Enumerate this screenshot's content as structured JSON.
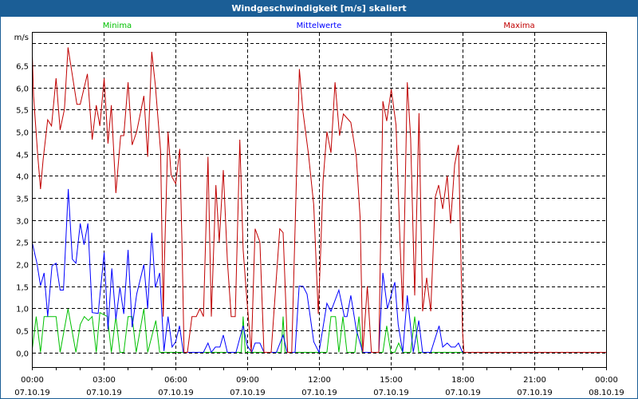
{
  "window": {
    "title": "Windgeschwindigkeit [m/s] skaliert"
  },
  "chart_data": {
    "type": "line",
    "title": "Windgeschwindigkeit [m/s] skaliert",
    "ylabel": "m/s",
    "xlabel": "",
    "ylim": [
      -0.33,
      7.26
    ],
    "xlim_hours": [
      0,
      24
    ],
    "yticks": [
      0,
      0.5,
      1,
      1.5,
      2,
      2.5,
      3,
      3.5,
      4,
      4.5,
      5,
      5.5,
      6,
      6.5,
      7
    ],
    "ytick_labels": [
      "0,0",
      "0,5",
      "1,0",
      "1,5",
      "2,0",
      "2,5",
      "3,0",
      "3,5",
      "4,0",
      "4,5",
      "5,0",
      "5,5",
      "6,0",
      "6,5",
      ""
    ],
    "xticks": [
      {
        "hour": 0,
        "time": "00:00",
        "date": "07.10.19"
      },
      {
        "hour": 3,
        "time": "03:00",
        "date": "07.10.19"
      },
      {
        "hour": 6,
        "time": "06:00",
        "date": "07.10.19"
      },
      {
        "hour": 9,
        "time": "09:00",
        "date": "07.10.19"
      },
      {
        "hour": 12,
        "time": "12:00",
        "date": "07.10.19"
      },
      {
        "hour": 15,
        "time": "15:00",
        "date": "07.10.19"
      },
      {
        "hour": 18,
        "time": "18:00",
        "date": "07.10.19"
      },
      {
        "hour": 21,
        "time": "21:00",
        "date": "07.10.19"
      },
      {
        "hour": 24,
        "time": "00:00",
        "date": "08.10.19"
      }
    ],
    "grid": true,
    "legend_placement": "top",
    "series": [
      {
        "name": "Minima",
        "color": "#00c000",
        "points": [
          [
            0.02,
            0.09
          ],
          [
            0.18,
            0.81
          ],
          [
            0.36,
            0
          ],
          [
            0.51,
            0.81
          ],
          [
            1.01,
            0.81
          ],
          [
            1.18,
            0
          ],
          [
            1.51,
            0.99
          ],
          [
            1.84,
            0
          ],
          [
            2.02,
            0.63
          ],
          [
            2.19,
            0.81
          ],
          [
            2.36,
            0.72
          ],
          [
            2.52,
            0.81
          ],
          [
            2.69,
            0
          ],
          [
            2.84,
            0.9
          ],
          [
            3.16,
            0.81
          ],
          [
            3.32,
            0
          ],
          [
            3.51,
            0.81
          ],
          [
            3.68,
            0
          ],
          [
            3.84,
            0
          ],
          [
            4.02,
            0.81
          ],
          [
            4.19,
            0.81
          ],
          [
            4.36,
            0
          ],
          [
            4.68,
            0.99
          ],
          [
            4.84,
            0
          ],
          [
            5.18,
            0.72
          ],
          [
            5.34,
            0
          ],
          [
            8.75,
            0
          ],
          [
            8.83,
            0.81
          ],
          [
            8.92,
            0
          ],
          [
            10.42,
            0
          ],
          [
            10.5,
            0.81
          ],
          [
            10.58,
            0
          ],
          [
            12.33,
            0
          ],
          [
            12.5,
            0.81
          ],
          [
            12.69,
            0.81
          ],
          [
            12.83,
            0
          ],
          [
            13.0,
            0.81
          ],
          [
            13.17,
            0
          ],
          [
            13.5,
            0
          ],
          [
            13.67,
            0.81
          ],
          [
            13.8,
            0
          ],
          [
            14.67,
            0
          ],
          [
            14.83,
            0.6
          ],
          [
            15.0,
            0
          ],
          [
            15.17,
            0
          ],
          [
            15.33,
            0.21
          ],
          [
            15.5,
            0
          ],
          [
            15.83,
            0
          ],
          [
            16.0,
            0.81
          ],
          [
            16.17,
            0
          ],
          [
            18,
            0
          ]
        ]
      },
      {
        "name": "Mittelwerte",
        "color": "#0000ff",
        "points": [
          [
            0.02,
            2.47
          ],
          [
            0.21,
            2.02
          ],
          [
            0.36,
            1.51
          ],
          [
            0.51,
            1.8
          ],
          [
            0.66,
            0.81
          ],
          [
            0.84,
            1.96
          ],
          [
            1.01,
            2.02
          ],
          [
            1.18,
            1.41
          ],
          [
            1.32,
            1.41
          ],
          [
            1.52,
            3.7
          ],
          [
            1.69,
            2.11
          ],
          [
            1.84,
            2.02
          ],
          [
            2.02,
            2.92
          ],
          [
            2.18,
            2.44
          ],
          [
            2.34,
            2.92
          ],
          [
            2.52,
            0.9
          ],
          [
            2.77,
            0.88
          ],
          [
            3.02,
            2.26
          ],
          [
            3.18,
            0.51
          ],
          [
            3.34,
            1.9
          ],
          [
            3.51,
            0.75
          ],
          [
            3.68,
            1.47
          ],
          [
            3.84,
            0.87
          ],
          [
            4.02,
            2.32
          ],
          [
            4.19,
            0.57
          ],
          [
            4.38,
            1.32
          ],
          [
            4.68,
            1.99
          ],
          [
            4.84,
            0.99
          ],
          [
            5.01,
            2.71
          ],
          [
            5.16,
            1.47
          ],
          [
            5.34,
            1.8
          ],
          [
            5.52,
            0.03
          ],
          [
            5.69,
            0.81
          ],
          [
            5.86,
            0.12
          ],
          [
            6.01,
            0.24
          ],
          [
            6.17,
            0.6
          ],
          [
            6.33,
            0
          ],
          [
            7.17,
            0
          ],
          [
            7.36,
            0.21
          ],
          [
            7.5,
            0
          ],
          [
            7.67,
            0.12
          ],
          [
            7.86,
            0.12
          ],
          [
            8.0,
            0.39
          ],
          [
            8.17,
            0
          ],
          [
            8.53,
            0
          ],
          [
            8.83,
            0.6
          ],
          [
            9.0,
            0.15
          ],
          [
            9.19,
            0
          ],
          [
            9.33,
            0.21
          ],
          [
            9.53,
            0.21
          ],
          [
            9.7,
            0
          ],
          [
            10.22,
            0
          ],
          [
            10.5,
            0.39
          ],
          [
            10.67,
            0
          ],
          [
            11.0,
            0
          ],
          [
            11.17,
            1.5
          ],
          [
            11.33,
            1.5
          ],
          [
            11.5,
            1.32
          ],
          [
            11.78,
            0.24
          ],
          [
            12.0,
            0
          ],
          [
            12.33,
            1.11
          ],
          [
            12.5,
            0.93
          ],
          [
            12.83,
            1.41
          ],
          [
            13.06,
            0.81
          ],
          [
            13.17,
            0.81
          ],
          [
            13.33,
            1.29
          ],
          [
            13.56,
            0.51
          ],
          [
            13.83,
            0
          ],
          [
            14.5,
            0
          ],
          [
            14.67,
            1.8
          ],
          [
            14.86,
            0.99
          ],
          [
            15.17,
            1.59
          ],
          [
            15.31,
            0.63
          ],
          [
            15.5,
            0
          ],
          [
            15.69,
            1.29
          ],
          [
            15.94,
            0
          ],
          [
            16.17,
            0.72
          ],
          [
            16.33,
            0
          ],
          [
            16.67,
            0
          ],
          [
            17.02,
            0.6
          ],
          [
            17.17,
            0.12
          ],
          [
            17.36,
            0.21
          ],
          [
            17.52,
            0.12
          ],
          [
            17.69,
            0.12
          ],
          [
            17.83,
            0.21
          ],
          [
            18,
            0
          ]
        ]
      },
      {
        "name": "Maxima",
        "color": "#c00000",
        "points": [
          [
            0.02,
            6.69
          ],
          [
            0.07,
            5.81
          ],
          [
            0.24,
            4.49
          ],
          [
            0.36,
            3.7
          ],
          [
            0.47,
            4.37
          ],
          [
            0.66,
            5.27
          ],
          [
            0.82,
            5.13
          ],
          [
            1.01,
            6.21
          ],
          [
            1.18,
            5.04
          ],
          [
            1.36,
            5.51
          ],
          [
            1.51,
            6.91
          ],
          [
            1.88,
            5.62
          ],
          [
            2.02,
            5.62
          ],
          [
            2.32,
            6.31
          ],
          [
            2.52,
            4.82
          ],
          [
            2.69,
            5.6
          ],
          [
            2.84,
            5.13
          ],
          [
            3.02,
            6.21
          ],
          [
            3.18,
            4.73
          ],
          [
            3.32,
            5.6
          ],
          [
            3.51,
            3.61
          ],
          [
            3.71,
            4.91
          ],
          [
            3.84,
            4.91
          ],
          [
            4.02,
            6.12
          ],
          [
            4.19,
            4.7
          ],
          [
            4.38,
            5.0
          ],
          [
            4.68,
            5.81
          ],
          [
            4.84,
            4.43
          ],
          [
            5.01,
            6.81
          ],
          [
            5.16,
            6.05
          ],
          [
            5.38,
            4.55
          ],
          [
            5.49,
            0.81
          ],
          [
            5.54,
            2.08
          ],
          [
            5.69,
            5.0
          ],
          [
            5.82,
            4.01
          ],
          [
            6.01,
            3.82
          ],
          [
            6.18,
            4.61
          ],
          [
            6.28,
            2.32
          ],
          [
            6.36,
            0
          ],
          [
            6.5,
            0
          ],
          [
            6.69,
            0.81
          ],
          [
            6.87,
            0.81
          ],
          [
            7.02,
            0.99
          ],
          [
            7.17,
            0.81
          ],
          [
            7.36,
            4.43
          ],
          [
            7.5,
            0.81
          ],
          [
            7.69,
            3.79
          ],
          [
            7.83,
            2.5
          ],
          [
            8.0,
            4.13
          ],
          [
            8.17,
            2.08
          ],
          [
            8.33,
            0.81
          ],
          [
            8.5,
            0.81
          ],
          [
            8.69,
            4.82
          ],
          [
            8.83,
            2.32
          ],
          [
            8.98,
            1.23
          ],
          [
            9.17,
            0
          ],
          [
            9.33,
            2.8
          ],
          [
            9.53,
            2.5
          ],
          [
            9.7,
            0
          ],
          [
            10.0,
            0
          ],
          [
            10.36,
            2.8
          ],
          [
            10.5,
            2.71
          ],
          [
            10.69,
            0
          ],
          [
            10.86,
            0
          ],
          [
            11.18,
            6.42
          ],
          [
            11.33,
            5.45
          ],
          [
            11.56,
            4.49
          ],
          [
            11.78,
            3.34
          ],
          [
            11.97,
            0.87
          ],
          [
            12.07,
            2.3
          ],
          [
            12.17,
            3.88
          ],
          [
            12.33,
            5.0
          ],
          [
            12.5,
            4.52
          ],
          [
            12.67,
            6.12
          ],
          [
            12.86,
            4.91
          ],
          [
            13.02,
            5.4
          ],
          [
            13.33,
            5.21
          ],
          [
            13.56,
            4.43
          ],
          [
            13.72,
            3.04
          ],
          [
            13.83,
            0
          ],
          [
            14.02,
            1.5
          ],
          [
            14.19,
            0
          ],
          [
            14.5,
            0
          ],
          [
            14.67,
            5.69
          ],
          [
            14.83,
            5.24
          ],
          [
            15.02,
            5.96
          ],
          [
            15.22,
            5.15
          ],
          [
            15.39,
            2.44
          ],
          [
            15.5,
            0.93
          ],
          [
            15.69,
            6.12
          ],
          [
            15.83,
            4.85
          ],
          [
            16.0,
            1.29
          ],
          [
            16.18,
            5.42
          ],
          [
            16.33,
            0.93
          ],
          [
            16.5,
            1.69
          ],
          [
            16.67,
            0.93
          ],
          [
            16.86,
            3.52
          ],
          [
            17.0,
            3.79
          ],
          [
            17.17,
            3.25
          ],
          [
            17.36,
            4.0
          ],
          [
            17.5,
            2.92
          ],
          [
            17.67,
            4.25
          ],
          [
            17.83,
            4.7
          ],
          [
            18.0,
            0.45
          ],
          [
            18.06,
            0
          ],
          [
            24,
            0
          ]
        ]
      }
    ]
  }
}
